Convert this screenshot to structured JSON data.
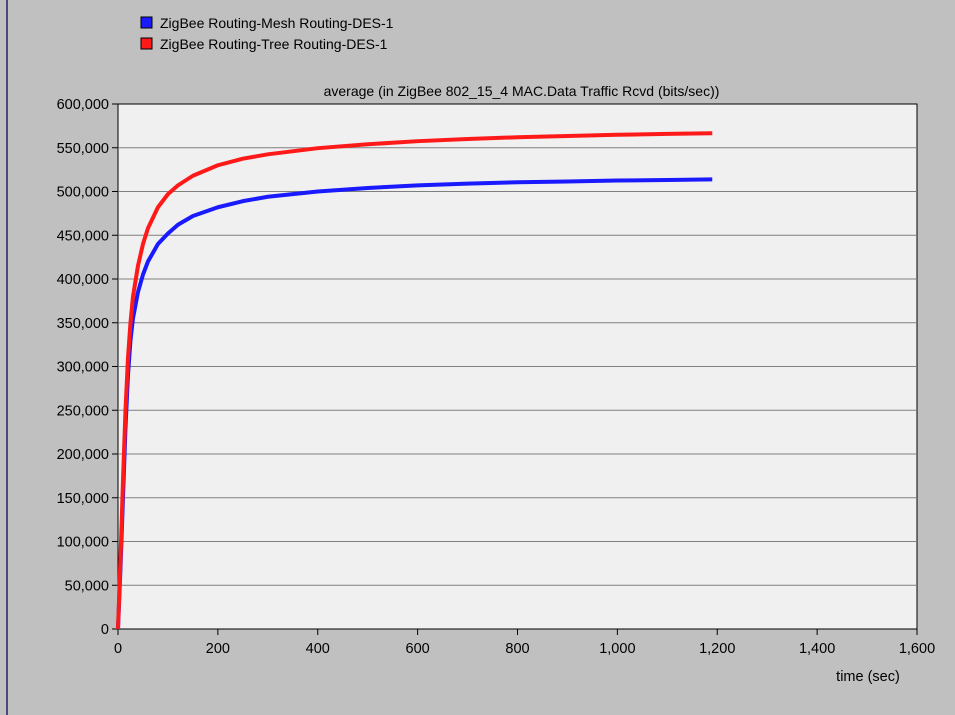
{
  "chart_data": {
    "type": "line",
    "title": "average (in ZigBee 802_15_4 MAC.Data Traffic Rcvd (bits/sec))",
    "xlabel": "time (sec)",
    "ylabel": "",
    "xlim": [
      0,
      1600
    ],
    "ylim": [
      0,
      600000
    ],
    "x_ticks": [
      0,
      200,
      400,
      600,
      800,
      1000,
      1200,
      1400,
      1600
    ],
    "x_tick_labels": [
      "0",
      "200",
      "400",
      "600",
      "800",
      "1,000",
      "1,200",
      "1,400",
      "1,600"
    ],
    "y_ticks": [
      0,
      50000,
      100000,
      150000,
      200000,
      250000,
      300000,
      350000,
      400000,
      450000,
      500000,
      550000,
      600000
    ],
    "y_tick_labels": [
      "0",
      "50,000",
      "100,000",
      "150,000",
      "200,000",
      "250,000",
      "300,000",
      "350,000",
      "400,000",
      "450,000",
      "500,000",
      "550,000",
      "600,000"
    ],
    "grid": true,
    "legend_position": "top-left",
    "series": [
      {
        "name": "ZigBee Routing-Mesh Routing-DES-1",
        "color": "#1a1aff",
        "x": [
          0,
          5,
          10,
          15,
          20,
          25,
          30,
          40,
          50,
          60,
          80,
          100,
          120,
          150,
          200,
          250,
          300,
          400,
          500,
          600,
          700,
          800,
          900,
          1000,
          1100,
          1190
        ],
        "y": [
          0,
          70000,
          150000,
          230000,
          290000,
          330000,
          355000,
          385000,
          405000,
          420000,
          440000,
          452000,
          462000,
          472000,
          482000,
          489000,
          494000,
          500000,
          504000,
          507000,
          509000,
          510500,
          511500,
          512500,
          513200,
          513800
        ]
      },
      {
        "name": "ZigBee Routing-Tree Routing-DES-1",
        "color": "#ff1a1a",
        "x": [
          0,
          5,
          10,
          15,
          20,
          25,
          30,
          40,
          50,
          60,
          80,
          100,
          120,
          150,
          200,
          250,
          300,
          400,
          500,
          600,
          700,
          800,
          900,
          1000,
          1100,
          1190
        ],
        "y": [
          0,
          80000,
          170000,
          250000,
          310000,
          350000,
          380000,
          415000,
          440000,
          458000,
          482000,
          497000,
          507000,
          518000,
          530000,
          537500,
          542500,
          549500,
          554000,
          557500,
          560000,
          562000,
          563500,
          564800,
          565800,
          566500
        ]
      }
    ]
  }
}
